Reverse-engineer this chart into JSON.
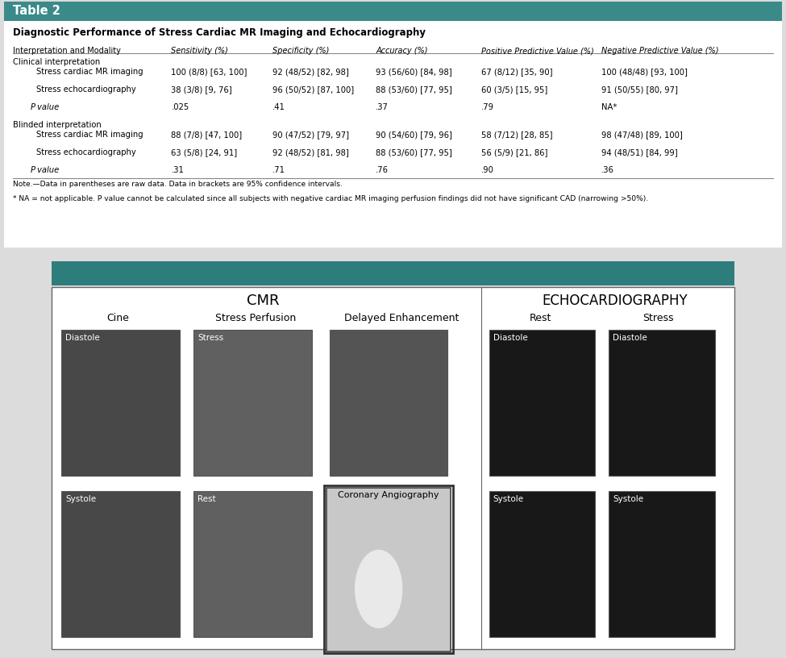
{
  "title_bar_text": "Table 2",
  "title_bar_color": "#3a8a8a",
  "title_bar_text_color": "#ffffff",
  "table_title": "Diagnostic Performance of Stress Cardiac MR Imaging and Echocardiography",
  "bg_color": "#dcdcdc",
  "white_bg": "#ffffff",
  "headers": [
    "Interpretation and Modality",
    "Sensitivity (%)",
    "Specificity (%)",
    "Accuracy (%)",
    "Positive Predictive Value (%)",
    "Negative Predictive Value (%)"
  ],
  "sections": [
    {
      "section_header": "Clinical interpretation",
      "rows": [
        [
          "Stress cardiac MR imaging",
          "100 (8/8) [63, 100]",
          "92 (48/52) [82, 98]",
          "93 (56/60) [84, 98]",
          "67 (8/12) [35, 90]",
          "100 (48/48) [93, 100]"
        ],
        [
          "Stress echocardiography",
          "38 (3/8) [9, 76]",
          "96 (50/52) [87, 100]",
          "88 (53/60) [77, 95]",
          "60 (3/5) [15, 95]",
          "91 (50/55) [80, 97]"
        ],
        [
          "P value",
          ".025",
          ".41",
          ".37",
          ".79",
          "NA*"
        ]
      ]
    },
    {
      "section_header": "Blinded interpretation",
      "rows": [
        [
          "Stress cardiac MR imaging",
          "88 (7/8) [47, 100]",
          "90 (47/52) [79, 97]",
          "90 (54/60) [79, 96]",
          "58 (7/12) [28, 85]",
          "98 (47/48) [89, 100]"
        ],
        [
          "Stress echocardiography",
          "63 (5/8) [24, 91]",
          "92 (48/52) [81, 98]",
          "88 (53/60) [77, 95]",
          "56 (5/9) [21, 86]",
          "94 (48/51) [84, 99]"
        ],
        [
          "P value",
          ".31",
          ".71",
          ".76",
          ".90",
          ".36"
        ]
      ]
    }
  ],
  "note1": "Note.—Data in parentheses are raw data. Data in brackets are 95% confidence intervals.",
  "note2": "* NA = not applicable. P value cannot be calculated since all subjects with negative cardiac MR imaging perfusion findings did not have significant CAD (narrowing >50%).",
  "bottom_panel_teal_color": "#2e7d7d",
  "cmr_label": "CMR",
  "echo_label": "ECHOCARDIOGRAPHY",
  "col_labels_cmr": [
    "Cine",
    "Stress Perfusion",
    "Delayed Enhancement"
  ],
  "col_labels_echo": [
    "Rest",
    "Stress"
  ],
  "img_labels_cmr_top": [
    "Diastole",
    "Stress",
    ""
  ],
  "img_labels_cmr_bottom": [
    "Systole",
    "Rest",
    "Coronary Angiography"
  ],
  "img_labels_echo_top": [
    "Diastole",
    "Diastole"
  ],
  "img_labels_echo_bottom": [
    "Systole",
    "Systole"
  ]
}
